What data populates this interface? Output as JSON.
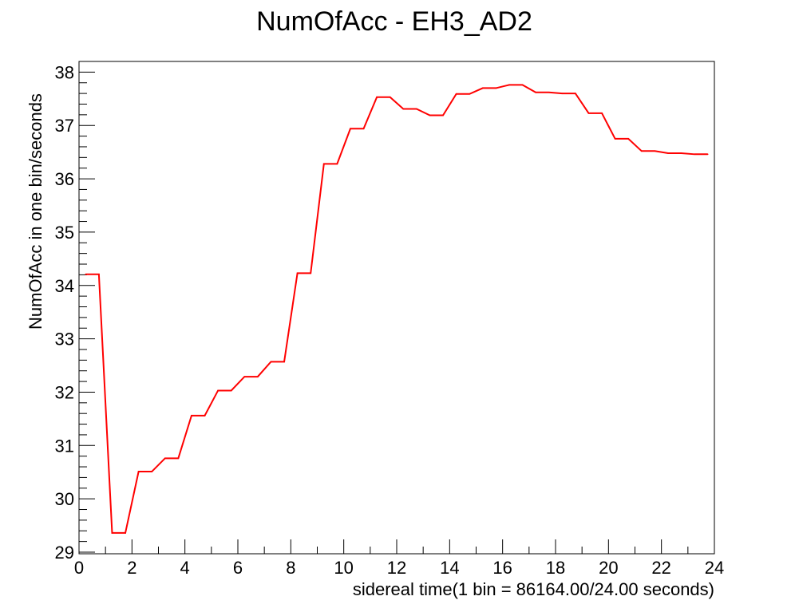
{
  "colors": {
    "background": "#ffffff",
    "frame": "#000000",
    "series": "#ff0000"
  },
  "chart_data": {
    "type": "line",
    "title": "NumOfAcc - EH3_AD2",
    "xlabel": "sidereal time(1 bin = 86164.00/24.00 seconds)",
    "ylabel": "NumOfAcc in one bin/seconds",
    "xlim": [
      0,
      24
    ],
    "ylim": [
      28.97,
      38.2
    ],
    "grid": false,
    "legend": "none",
    "x_ticks": [
      "0",
      "2",
      "4",
      "6",
      "8",
      "10",
      "12",
      "14",
      "16",
      "18",
      "20",
      "22",
      "24"
    ],
    "y_ticks": [
      "29",
      "30",
      "31",
      "32",
      "33",
      "34",
      "35",
      "36",
      "37",
      "38"
    ],
    "series": [
      {
        "color": "#ff0000",
        "x": [
          0.25,
          0.75,
          1.25,
          1.75,
          2.25,
          2.75,
          3.25,
          3.75,
          4.25,
          4.75,
          5.25,
          5.75,
          6.25,
          6.75,
          7.25,
          7.75,
          8.25,
          8.75,
          9.25,
          9.75,
          10.25,
          10.75,
          11.25,
          11.75,
          12.25,
          12.75,
          13.25,
          13.75,
          14.25,
          14.75,
          15.25,
          15.75,
          16.25,
          16.75,
          17.25,
          17.75,
          18.25,
          18.75,
          19.25,
          19.75,
          20.25,
          20.75,
          21.25,
          21.75,
          22.25,
          22.75,
          23.25,
          23.75
        ],
        "values": [
          34.21,
          34.21,
          29.36,
          29.36,
          30.51,
          30.51,
          30.76,
          30.76,
          31.56,
          31.56,
          32.03,
          32.03,
          32.29,
          32.29,
          32.57,
          32.57,
          34.23,
          34.23,
          36.28,
          36.28,
          36.94,
          36.94,
          37.53,
          37.53,
          37.31,
          37.31,
          37.19,
          37.19,
          37.59,
          37.59,
          37.7,
          37.7,
          37.76,
          37.76,
          37.62,
          37.62,
          37.6,
          37.6,
          37.23,
          37.23,
          36.75,
          36.75,
          36.52,
          36.52,
          36.48,
          36.48,
          36.46,
          36.46
        ]
      }
    ]
  }
}
